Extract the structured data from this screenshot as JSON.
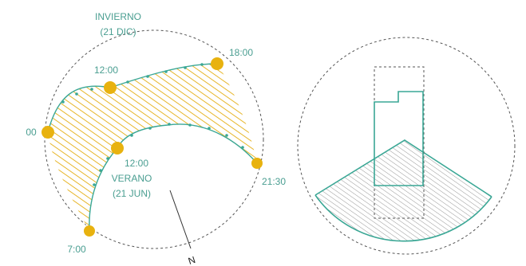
{
  "colors": {
    "teal": "#3aa795",
    "label_teal": "#4a9e91",
    "sun_gold": "#e8b20f",
    "hatch_gold": "#e7b62a",
    "hatch_gray": "#8a8a8a",
    "dashed": "#555555",
    "north_line": "#333333"
  },
  "left_diagram": {
    "winter": {
      "line1": "INVIERNO",
      "line2": "(21 DIC)"
    },
    "summer": {
      "line1": "VERANO",
      "line2": "(21 JUN)"
    },
    "times": {
      "winter_noon": "12:00",
      "winter_evening": "18:00",
      "winter_sunrise": "00",
      "summer_noon": "12:00",
      "summer_sunset": "21:30",
      "summer_sunrise": "7:00"
    },
    "north": "N"
  },
  "right_diagram": {}
}
